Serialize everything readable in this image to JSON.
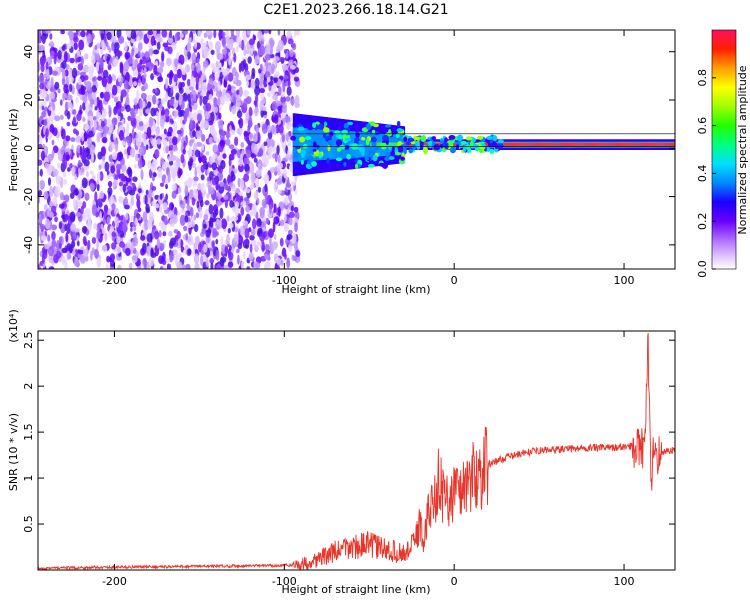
{
  "figure_title": "C2E1.2023.266.18.14.G21",
  "chart_data": [
    {
      "type": "heatmap",
      "xlabel": "Height of straight line (km)",
      "ylabel": "Frequency (Hz)",
      "xlim": [
        -245,
        130
      ],
      "ylim": [
        -50,
        49
      ],
      "xticks": [
        -200,
        -100,
        0,
        100
      ],
      "yticks": [
        -40,
        -20,
        0,
        20,
        40
      ],
      "colorbar": {
        "label": "Normalized spectral amplitude",
        "range": [
          0,
          1
        ],
        "ticks": [
          0.0,
          0.2,
          0.4,
          0.6,
          0.8
        ]
      },
      "regions": [
        {
          "description": "broadband noise",
          "x_range": [
            -245,
            -92
          ],
          "y_range": [
            -50,
            49
          ],
          "amplitude": 0.12
        },
        {
          "description": "signal band",
          "x_range": [
            -95,
            130
          ],
          "center_y": 1.5,
          "amplitude": 0.9
        }
      ]
    },
    {
      "type": "line",
      "xlabel": "Height of straight line (km)",
      "ylabel": "SNR (10 * v/v)",
      "exponent_label": "(x10⁴)",
      "xlim": [
        -245,
        130
      ],
      "ylim": [
        0,
        2.6
      ],
      "xticks": [
        -200,
        -100,
        0,
        100
      ],
      "yticks": [
        0.5,
        1.0,
        1.5,
        2.0,
        2.5
      ],
      "series": [
        {
          "color": "#e8352a",
          "x": [
            -245,
            -200,
            -150,
            -100,
            -90,
            -80,
            -70,
            -60,
            -50,
            -45,
            -40,
            -35,
            -30,
            -25,
            -20,
            -18,
            -15,
            -12,
            -10,
            -5,
            0,
            5,
            10,
            15,
            20,
            30,
            40,
            50,
            60,
            70,
            80,
            90,
            100,
            105,
            110,
            112,
            114,
            116,
            118,
            120,
            125,
            130
          ],
          "y": [
            0.02,
            0.03,
            0.04,
            0.05,
            0.06,
            0.12,
            0.2,
            0.25,
            0.28,
            0.25,
            0.22,
            0.2,
            0.18,
            0.25,
            0.5,
            0.3,
            0.65,
            0.7,
            1.0,
            0.75,
            0.85,
            0.9,
            1.0,
            1.05,
            1.15,
            1.22,
            1.27,
            1.3,
            1.31,
            1.32,
            1.33,
            1.33,
            1.34,
            1.35,
            1.4,
            1.2,
            2.55,
            0.8,
            1.5,
            1.25,
            1.3,
            1.3
          ]
        }
      ]
    }
  ]
}
